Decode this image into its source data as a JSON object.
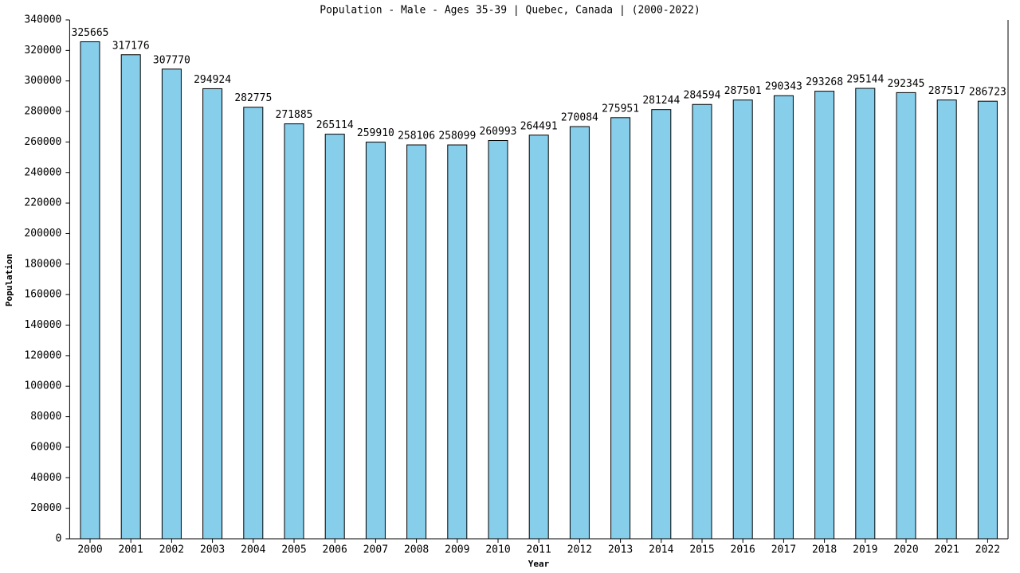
{
  "chart_data": {
    "type": "bar",
    "title": "Population - Male - Ages 35-39 | Quebec, Canada |  (2000-2022)",
    "x_label": "Year",
    "y_label": "Population",
    "categories": [
      "2000",
      "2001",
      "2002",
      "2003",
      "2004",
      "2005",
      "2006",
      "2007",
      "2008",
      "2009",
      "2010",
      "2011",
      "2012",
      "2013",
      "2014",
      "2015",
      "2016",
      "2017",
      "2018",
      "2019",
      "2020",
      "2021",
      "2022"
    ],
    "values": [
      325665,
      317176,
      307770,
      294924,
      282775,
      271885,
      265114,
      259910,
      258106,
      258099,
      260993,
      264491,
      270084,
      275951,
      281244,
      284594,
      287501,
      290343,
      293268,
      295144,
      292345,
      287517,
      286723
    ],
    "color": "#87ceeb",
    "ylim": [
      0,
      340000
    ],
    "yticks": [
      0,
      20000,
      40000,
      60000,
      80000,
      100000,
      120000,
      140000,
      160000,
      180000,
      200000,
      220000,
      240000,
      260000,
      280000,
      300000,
      320000,
      340000
    ],
    "grid": false
  }
}
